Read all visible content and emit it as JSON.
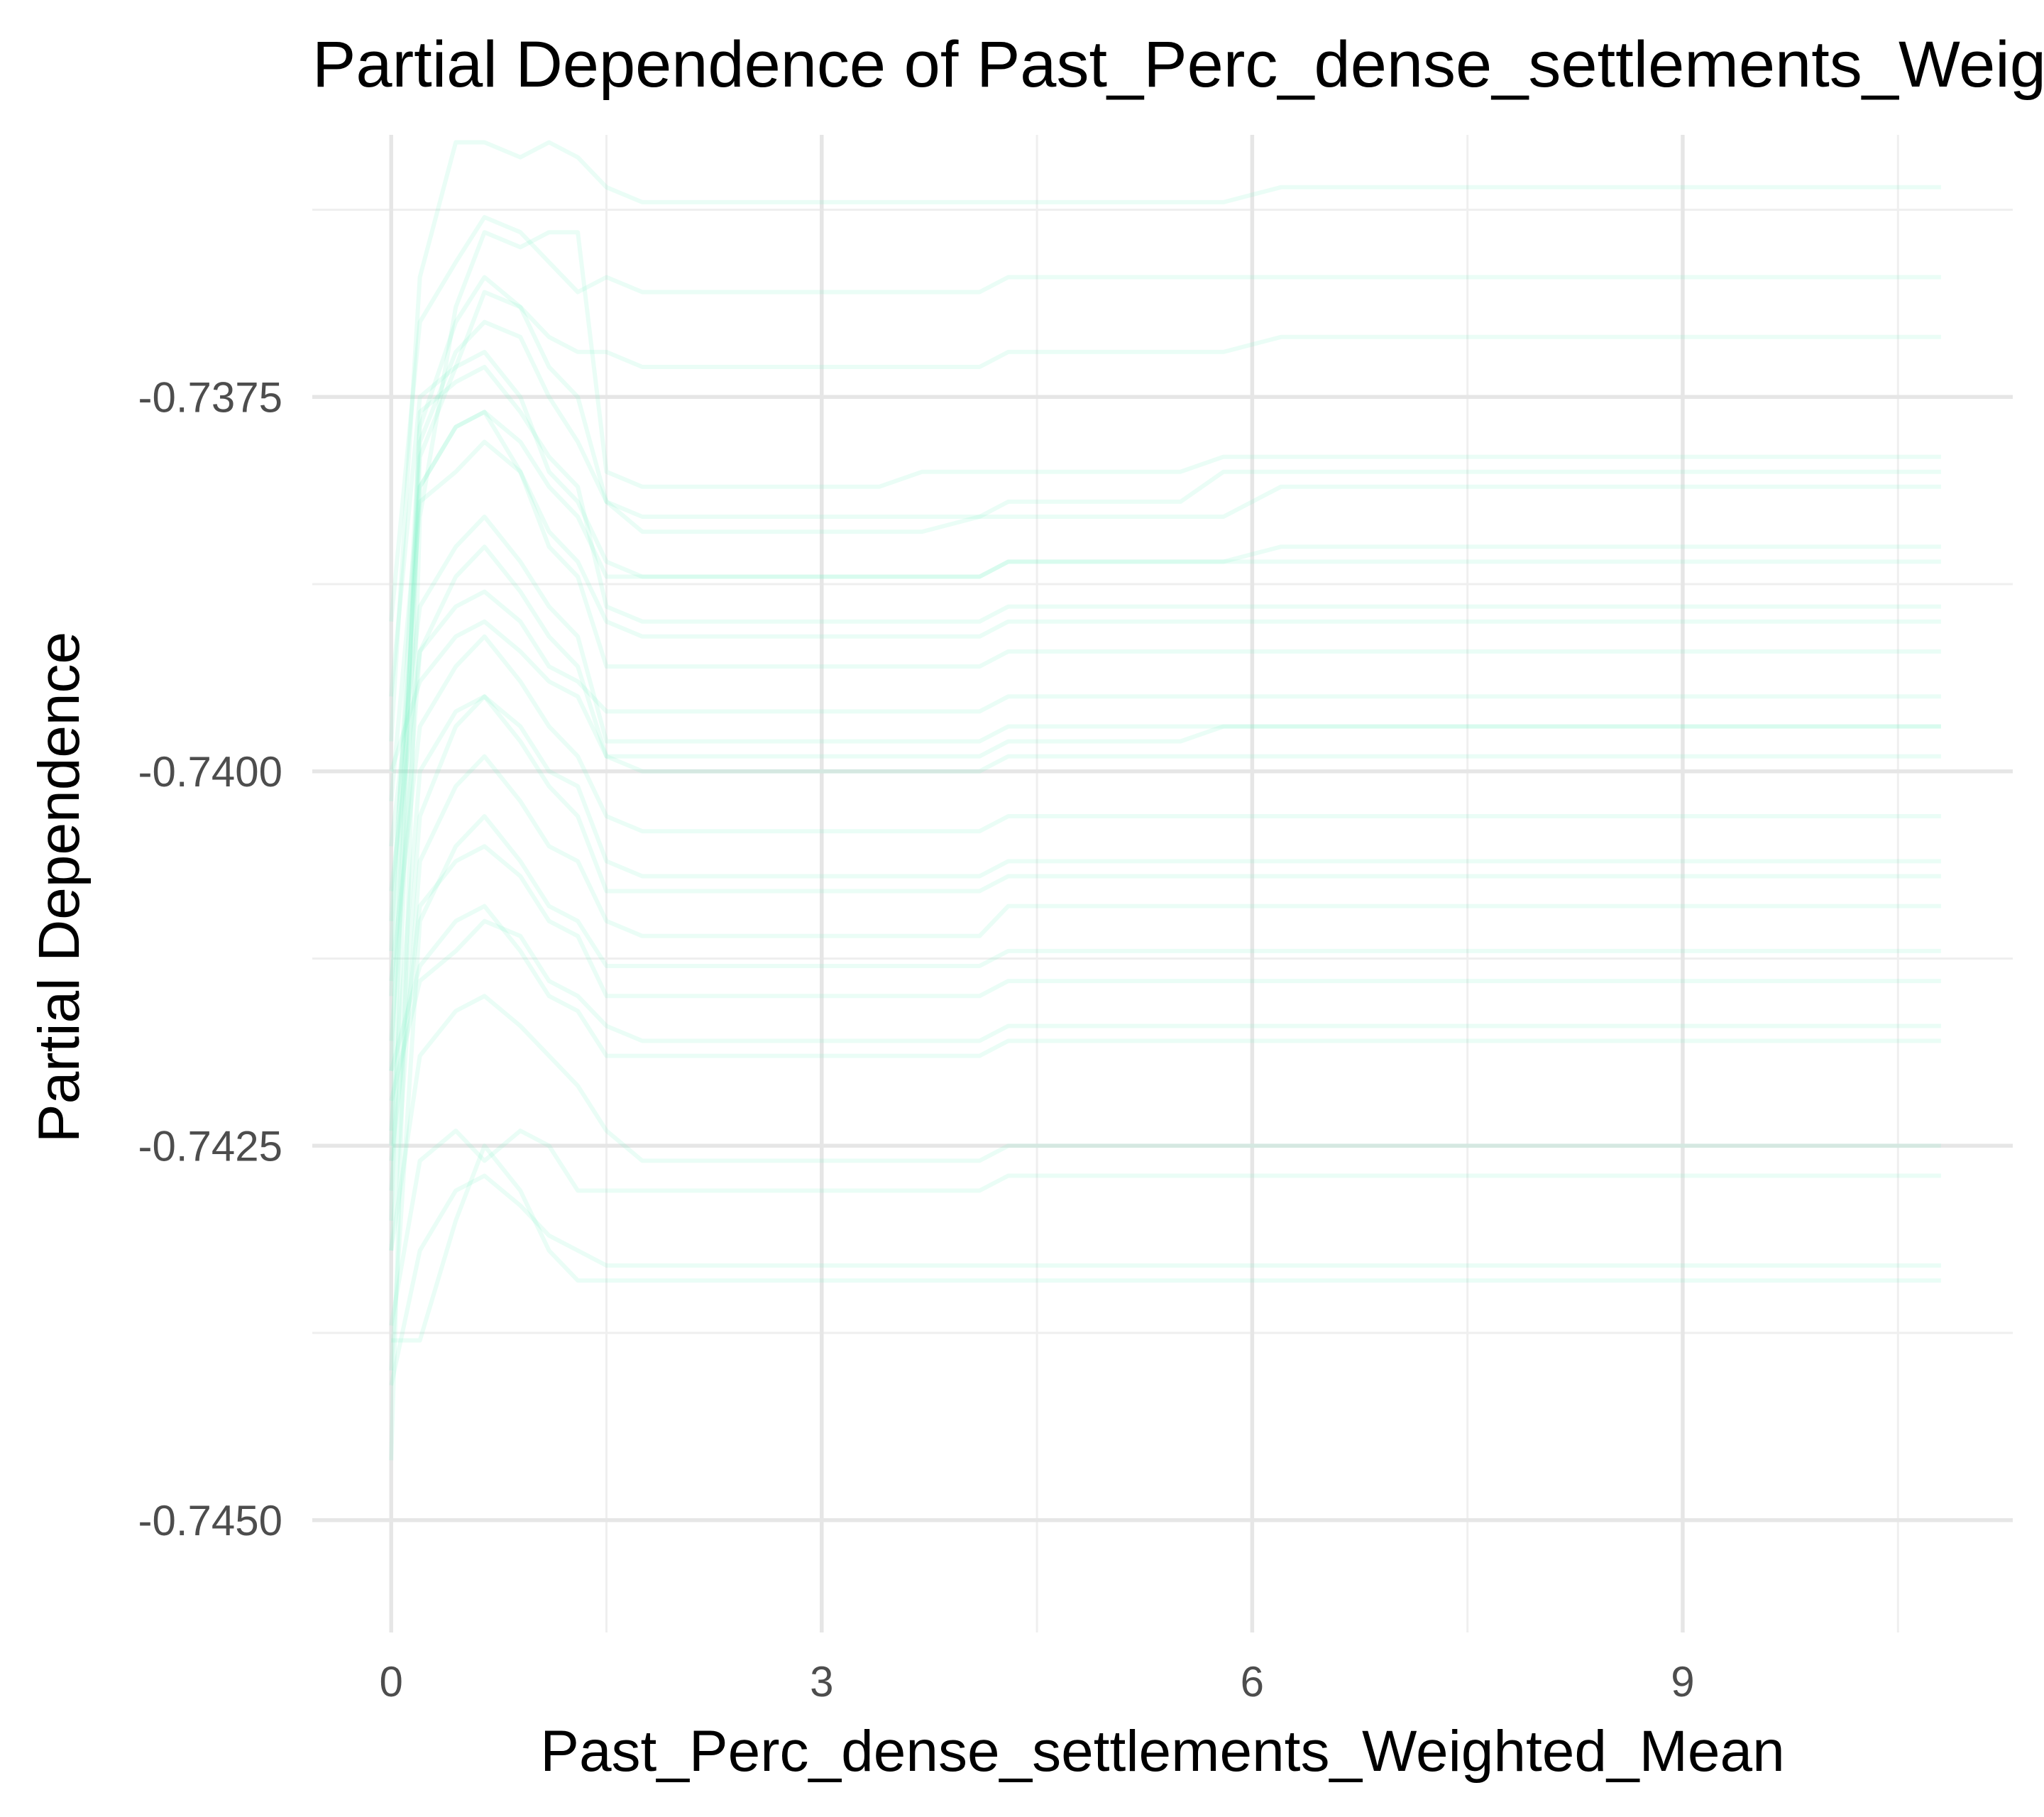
{
  "chart_data": {
    "type": "line",
    "title": "Partial Dependence of Past_Perc_dense_settlements_Weighted_Mean",
    "xlabel": "Past_Perc_dense_settlements_Weighted_Mean",
    "ylabel": "Partial Dependence",
    "xlim": [
      -0.55,
      11.3
    ],
    "ylim": [
      -0.74575,
      -0.73575
    ],
    "x_ticks": [
      0,
      3,
      6,
      9
    ],
    "x_tick_labels": [
      "0",
      "3",
      "6",
      "9"
    ],
    "y_ticks": [
      -0.7375,
      -0.74,
      -0.7425,
      -0.745
    ],
    "y_tick_labels": [
      "-0.7375",
      "-0.7400",
      "-0.7425",
      "-0.7450"
    ],
    "grid": true,
    "legend": "none",
    "line_color": "#7ff0c9",
    "x": [
      0,
      0.2,
      0.45,
      0.65,
      0.9,
      1.1,
      1.3,
      1.5,
      1.75,
      2.15,
      2.6,
      3.0,
      3.4,
      3.7,
      4.1,
      4.3,
      4.7,
      5.1,
      5.5,
      5.8,
      6.2,
      6.6,
      7.0,
      7.5,
      8.0,
      8.3,
      8.8,
      9.4,
      10.0,
      10.8
    ],
    "series": [
      {
        "values": [
          -0.7446,
          -0.7383,
          -0.7369,
          -0.7364,
          -0.7365,
          -0.7364,
          -0.7364,
          -0.738,
          -0.7381,
          -0.7381,
          -0.7381,
          -0.7381,
          -0.7381,
          -0.738,
          -0.738,
          -0.738,
          -0.738,
          -0.738,
          -0.738,
          -0.7379,
          -0.7379,
          -0.7379,
          -0.7379,
          -0.7379,
          -0.7379,
          -0.7379,
          -0.7379,
          -0.7379,
          -0.7379,
          -0.7379
        ]
      },
      {
        "values": [
          -0.743,
          -0.7379,
          -0.7373,
          -0.7368,
          -0.7369,
          -0.7373,
          -0.7375,
          -0.7382,
          -0.7383,
          -0.7383,
          -0.7383,
          -0.7383,
          -0.7383,
          -0.7383,
          -0.7383,
          -0.7382,
          -0.7382,
          -0.7382,
          -0.7382,
          -0.738,
          -0.738,
          -0.738,
          -0.738,
          -0.738,
          -0.738,
          -0.738,
          -0.738,
          -0.738,
          -0.738,
          -0.738
        ]
      },
      {
        "values": [
          -0.742,
          -0.7378,
          -0.7372,
          -0.737,
          -0.7371,
          -0.7375,
          -0.7378,
          -0.7382,
          -0.7384,
          -0.7384,
          -0.7384,
          -0.7384,
          -0.7384,
          -0.7384,
          -0.7383,
          -0.7383,
          -0.7383,
          -0.7383,
          -0.7383,
          -0.7383,
          -0.7381,
          -0.7381,
          -0.7381,
          -0.7381,
          -0.7381,
          -0.7381,
          -0.7381,
          -0.7381,
          -0.7381,
          -0.7381
        ]
      },
      {
        "values": [
          -0.7395,
          -0.7375,
          -0.7373,
          -0.7372,
          -0.7375,
          -0.738,
          -0.7382,
          -0.7386,
          -0.7387,
          -0.7387,
          -0.7387,
          -0.7387,
          -0.7387,
          -0.7387,
          -0.7387,
          -0.7386,
          -0.7386,
          -0.7386,
          -0.7386,
          -0.7386,
          -0.7385,
          -0.7385,
          -0.7385,
          -0.7385,
          -0.7385,
          -0.7385,
          -0.7385,
          -0.7385,
          -0.7385,
          -0.7385
        ]
      },
      {
        "values": [
          -0.7425,
          -0.7376,
          -0.7374,
          -0.7373,
          -0.7376,
          -0.7379,
          -0.7381,
          -0.7389,
          -0.739,
          -0.739,
          -0.739,
          -0.739,
          -0.739,
          -0.739,
          -0.739,
          -0.7389,
          -0.7389,
          -0.7389,
          -0.7389,
          -0.7389,
          -0.7389,
          -0.7389,
          -0.7389,
          -0.7389,
          -0.7389,
          -0.7389,
          -0.7389,
          -0.7389,
          -0.7389,
          -0.7389
        ]
      },
      {
        "values": [
          -0.7415,
          -0.7381,
          -0.7377,
          -0.7376,
          -0.738,
          -0.7385,
          -0.7387,
          -0.7393,
          -0.7393,
          -0.7393,
          -0.7393,
          -0.7393,
          -0.7393,
          -0.7393,
          -0.7393,
          -0.7392,
          -0.7392,
          -0.7392,
          -0.7392,
          -0.7392,
          -0.7392,
          -0.7392,
          -0.7392,
          -0.7392,
          -0.7392,
          -0.7392,
          -0.7392,
          -0.7392,
          -0.7392,
          -0.7392
        ]
      },
      {
        "values": [
          -0.741,
          -0.7382,
          -0.738,
          -0.7378,
          -0.738,
          -0.7384,
          -0.7386,
          -0.739,
          -0.7391,
          -0.7391,
          -0.7391,
          -0.7391,
          -0.7391,
          -0.7391,
          -0.7391,
          -0.739,
          -0.739,
          -0.739,
          -0.739,
          -0.739,
          -0.739,
          -0.739,
          -0.739,
          -0.739,
          -0.739,
          -0.739,
          -0.739,
          -0.739,
          -0.739,
          -0.739
        ]
      },
      {
        "values": [
          -0.7405,
          -0.7389,
          -0.7385,
          -0.7383,
          -0.7386,
          -0.7389,
          -0.7391,
          -0.7398,
          -0.7398,
          -0.7398,
          -0.7398,
          -0.7398,
          -0.7398,
          -0.7398,
          -0.7398,
          -0.7397,
          -0.7397,
          -0.7397,
          -0.7397,
          -0.7397,
          -0.7397,
          -0.7397,
          -0.7397,
          -0.7397,
          -0.7397,
          -0.7397,
          -0.7397,
          -0.7397,
          -0.7397,
          -0.7397
        ]
      },
      {
        "values": [
          -0.7418,
          -0.7392,
          -0.7387,
          -0.7385,
          -0.7388,
          -0.7391,
          -0.7393,
          -0.7399,
          -0.74,
          -0.74,
          -0.74,
          -0.74,
          -0.74,
          -0.74,
          -0.74,
          -0.7399,
          -0.7399,
          -0.7399,
          -0.7399,
          -0.7399,
          -0.7399,
          -0.7399,
          -0.7399,
          -0.7399,
          -0.7399,
          -0.7399,
          -0.7399,
          -0.7399,
          -0.7399,
          -0.7399
        ]
      },
      {
        "values": [
          -0.74,
          -0.7394,
          -0.7391,
          -0.739,
          -0.7392,
          -0.7394,
          -0.7395,
          -0.7399,
          -0.7399,
          -0.7399,
          -0.7399,
          -0.7399,
          -0.7399,
          -0.7399,
          -0.7399,
          -0.7398,
          -0.7398,
          -0.7398,
          -0.7398,
          -0.7397,
          -0.7397,
          -0.7397,
          -0.7397,
          -0.7397,
          -0.7397,
          -0.7397,
          -0.7397,
          -0.7397,
          -0.7397,
          -0.7397
        ]
      },
      {
        "values": [
          -0.7428,
          -0.7403,
          -0.7397,
          -0.7395,
          -0.7397,
          -0.74,
          -0.7401,
          -0.7406,
          -0.7407,
          -0.7407,
          -0.7407,
          -0.7407,
          -0.7407,
          -0.7407,
          -0.7407,
          -0.7406,
          -0.7406,
          -0.7406,
          -0.7406,
          -0.7406,
          -0.7406,
          -0.7406,
          -0.7406,
          -0.7406,
          -0.7406,
          -0.7406,
          -0.7406,
          -0.7406,
          -0.7406,
          -0.7406
        ]
      },
      {
        "values": [
          -0.7432,
          -0.7406,
          -0.7401,
          -0.7399,
          -0.7402,
          -0.7405,
          -0.7406,
          -0.741,
          -0.7411,
          -0.7411,
          -0.7411,
          -0.7411,
          -0.7411,
          -0.7411,
          -0.7411,
          -0.7409,
          -0.7409,
          -0.7409,
          -0.7409,
          -0.7409,
          -0.7409,
          -0.7409,
          -0.7409,
          -0.7409,
          -0.7409,
          -0.7409,
          -0.7409,
          -0.7409,
          -0.7409,
          -0.7409
        ]
      },
      {
        "values": [
          -0.744,
          -0.741,
          -0.7405,
          -0.7403,
          -0.7406,
          -0.7409,
          -0.741,
          -0.7413,
          -0.7413,
          -0.7413,
          -0.7413,
          -0.7413,
          -0.7413,
          -0.7413,
          -0.7413,
          -0.7412,
          -0.7412,
          -0.7412,
          -0.7412,
          -0.7412,
          -0.7412,
          -0.7412,
          -0.7412,
          -0.7412,
          -0.7412,
          -0.7412,
          -0.7412,
          -0.7412,
          -0.7412,
          -0.7412
        ]
      },
      {
        "values": [
          -0.7426,
          -0.7409,
          -0.7406,
          -0.7405,
          -0.7407,
          -0.741,
          -0.7411,
          -0.7415,
          -0.7415,
          -0.7415,
          -0.7415,
          -0.7415,
          -0.7415,
          -0.7415,
          -0.7415,
          -0.7414,
          -0.7414,
          -0.7414,
          -0.7414,
          -0.7414,
          -0.7414,
          -0.7414,
          -0.7414,
          -0.7414,
          -0.7414,
          -0.7414,
          -0.7414,
          -0.7414,
          -0.7414,
          -0.7414
        ]
      },
      {
        "values": [
          -0.742,
          -0.7413,
          -0.741,
          -0.7409,
          -0.7412,
          -0.7415,
          -0.7416,
          -0.7419,
          -0.7419,
          -0.7419,
          -0.7419,
          -0.7419,
          -0.7419,
          -0.7419,
          -0.7419,
          -0.7418,
          -0.7418,
          -0.7418,
          -0.7418,
          -0.7418,
          -0.7418,
          -0.7418,
          -0.7418,
          -0.7418,
          -0.7418,
          -0.7418,
          -0.7418,
          -0.7418,
          -0.7418,
          -0.7418
        ]
      },
      {
        "values": [
          -0.7437,
          -0.7426,
          -0.7424,
          -0.7426,
          -0.7424,
          -0.7425,
          -0.7428,
          -0.7428,
          -0.7428,
          -0.7428,
          -0.7428,
          -0.7428,
          -0.7428,
          -0.7428,
          -0.7428,
          -0.7427,
          -0.7427,
          -0.7427,
          -0.7427,
          -0.7427,
          -0.7427,
          -0.7427,
          -0.7427,
          -0.7427,
          -0.7427,
          -0.7427,
          -0.7427,
          -0.7427,
          -0.7427,
          -0.7427
        ]
      },
      {
        "values": [
          -0.7438,
          -0.7438,
          -0.743,
          -0.7425,
          -0.7428,
          -0.7432,
          -0.7434,
          -0.7434,
          -0.7434,
          -0.7434,
          -0.7434,
          -0.7434,
          -0.7434,
          -0.7434,
          -0.7434,
          -0.7434,
          -0.7434,
          -0.7434,
          -0.7434,
          -0.7434,
          -0.7434,
          -0.7434,
          -0.7434,
          -0.7434,
          -0.7434,
          -0.7434,
          -0.7434,
          -0.7434,
          -0.7434,
          -0.7434
        ]
      },
      {
        "values": [
          -0.7441,
          -0.7432,
          -0.7428,
          -0.7427,
          -0.7429,
          -0.7431,
          -0.7432,
          -0.7433,
          -0.7433,
          -0.7433,
          -0.7433,
          -0.7433,
          -0.7433,
          -0.7433,
          -0.7433,
          -0.7433,
          -0.7433,
          -0.7433,
          -0.7433,
          -0.7433,
          -0.7433,
          -0.7433,
          -0.7433,
          -0.7433,
          -0.7433,
          -0.7433,
          -0.7433,
          -0.7433,
          -0.7433,
          -0.7433
        ]
      },
      {
        "values": [
          -0.7398,
          -0.7367,
          -0.7358,
          -0.7358,
          -0.7359,
          -0.7358,
          -0.7359,
          -0.7361,
          -0.7362,
          -0.7362,
          -0.7362,
          -0.7362,
          -0.7362,
          -0.7362,
          -0.7362,
          -0.7362,
          -0.7362,
          -0.7362,
          -0.7362,
          -0.7362,
          -0.7361,
          -0.7361,
          -0.7361,
          -0.7361,
          -0.7361,
          -0.7361,
          -0.7361,
          -0.7361,
          -0.7361,
          -0.7361
        ]
      },
      {
        "values": [
          -0.739,
          -0.737,
          -0.7366,
          -0.7363,
          -0.7364,
          -0.7366,
          -0.7368,
          -0.7367,
          -0.7368,
          -0.7368,
          -0.7368,
          -0.7368,
          -0.7368,
          -0.7368,
          -0.7368,
          -0.7367,
          -0.7367,
          -0.7367,
          -0.7367,
          -0.7367,
          -0.7367,
          -0.7367,
          -0.7367,
          -0.7367,
          -0.7367,
          -0.7367,
          -0.7367,
          -0.7367,
          -0.7367,
          -0.7367
        ]
      },
      {
        "values": [
          -0.7412,
          -0.7377,
          -0.737,
          -0.7367,
          -0.7369,
          -0.7371,
          -0.7372,
          -0.7372,
          -0.7373,
          -0.7373,
          -0.7373,
          -0.7373,
          -0.7373,
          -0.7373,
          -0.7373,
          -0.7372,
          -0.7372,
          -0.7372,
          -0.7372,
          -0.7372,
          -0.7371,
          -0.7371,
          -0.7371,
          -0.7371,
          -0.7371,
          -0.7371,
          -0.7371,
          -0.7371,
          -0.7371,
          -0.7371
        ]
      },
      {
        "values": [
          -0.7402,
          -0.7381,
          -0.7377,
          -0.7376,
          -0.7378,
          -0.7381,
          -0.7383,
          -0.7387,
          -0.7387,
          -0.7387,
          -0.7387,
          -0.7387,
          -0.7387,
          -0.7387,
          -0.7387,
          -0.7386,
          -0.7386,
          -0.7386,
          -0.7386,
          -0.7386,
          -0.7386,
          -0.7386,
          -0.7386,
          -0.7386,
          -0.7386,
          -0.7386,
          -0.7386,
          -0.7386,
          -0.7386,
          -0.7386
        ]
      },
      {
        "values": [
          -0.7414,
          -0.7397,
          -0.7393,
          -0.7391,
          -0.7394,
          -0.7397,
          -0.7399,
          -0.7403,
          -0.7404,
          -0.7404,
          -0.7404,
          -0.7404,
          -0.7404,
          -0.7404,
          -0.7404,
          -0.7403,
          -0.7403,
          -0.7403,
          -0.7403,
          -0.7403,
          -0.7403,
          -0.7403,
          -0.7403,
          -0.7403,
          -0.7403,
          -0.7403,
          -0.7403,
          -0.7403,
          -0.7403,
          -0.7403
        ]
      },
      {
        "values": [
          -0.7422,
          -0.7414,
          -0.7412,
          -0.741,
          -0.7411,
          -0.7414,
          -0.7415,
          -0.7417,
          -0.7418,
          -0.7418,
          -0.7418,
          -0.7418,
          -0.7418,
          -0.7418,
          -0.7418,
          -0.7417,
          -0.7417,
          -0.7417,
          -0.7417,
          -0.7417,
          -0.7417,
          -0.7417,
          -0.7417,
          -0.7417,
          -0.7417,
          -0.7417,
          -0.7417,
          -0.7417,
          -0.7417,
          -0.7417
        ]
      },
      {
        "values": [
          -0.7432,
          -0.7419,
          -0.7416,
          -0.7415,
          -0.7417,
          -0.7419,
          -0.7421,
          -0.7424,
          -0.7426,
          -0.7426,
          -0.7426,
          -0.7426,
          -0.7426,
          -0.7426,
          -0.7426,
          -0.7425,
          -0.7425,
          -0.7425,
          -0.7425,
          -0.7425,
          -0.7425,
          -0.7425,
          -0.7425,
          -0.7425,
          -0.7425,
          -0.7425,
          -0.7425,
          -0.7425,
          -0.7425,
          -0.7425
        ]
      },
      {
        "values": [
          -0.7408,
          -0.7392,
          -0.7389,
          -0.7388,
          -0.739,
          -0.7393,
          -0.7394,
          -0.7396,
          -0.7396,
          -0.7396,
          -0.7396,
          -0.7396,
          -0.7396,
          -0.7396,
          -0.7396,
          -0.7395,
          -0.7395,
          -0.7395,
          -0.7395,
          -0.7395,
          -0.7395,
          -0.7395,
          -0.7395,
          -0.7395,
          -0.7395,
          -0.7395,
          -0.7395,
          -0.7395,
          -0.7395,
          -0.7395
        ]
      },
      {
        "values": [
          -0.7424,
          -0.74,
          -0.7396,
          -0.7395,
          -0.7398,
          -0.7401,
          -0.7403,
          -0.7408,
          -0.7408,
          -0.7408,
          -0.7408,
          -0.7408,
          -0.7408,
          -0.7408,
          -0.7408,
          -0.7407,
          -0.7407,
          -0.7407,
          -0.7407,
          -0.7407,
          -0.7407,
          -0.7407,
          -0.7407,
          -0.7407,
          -0.7407,
          -0.7407,
          -0.7407,
          -0.7407,
          -0.7407,
          -0.7407
        ]
      }
    ]
  }
}
